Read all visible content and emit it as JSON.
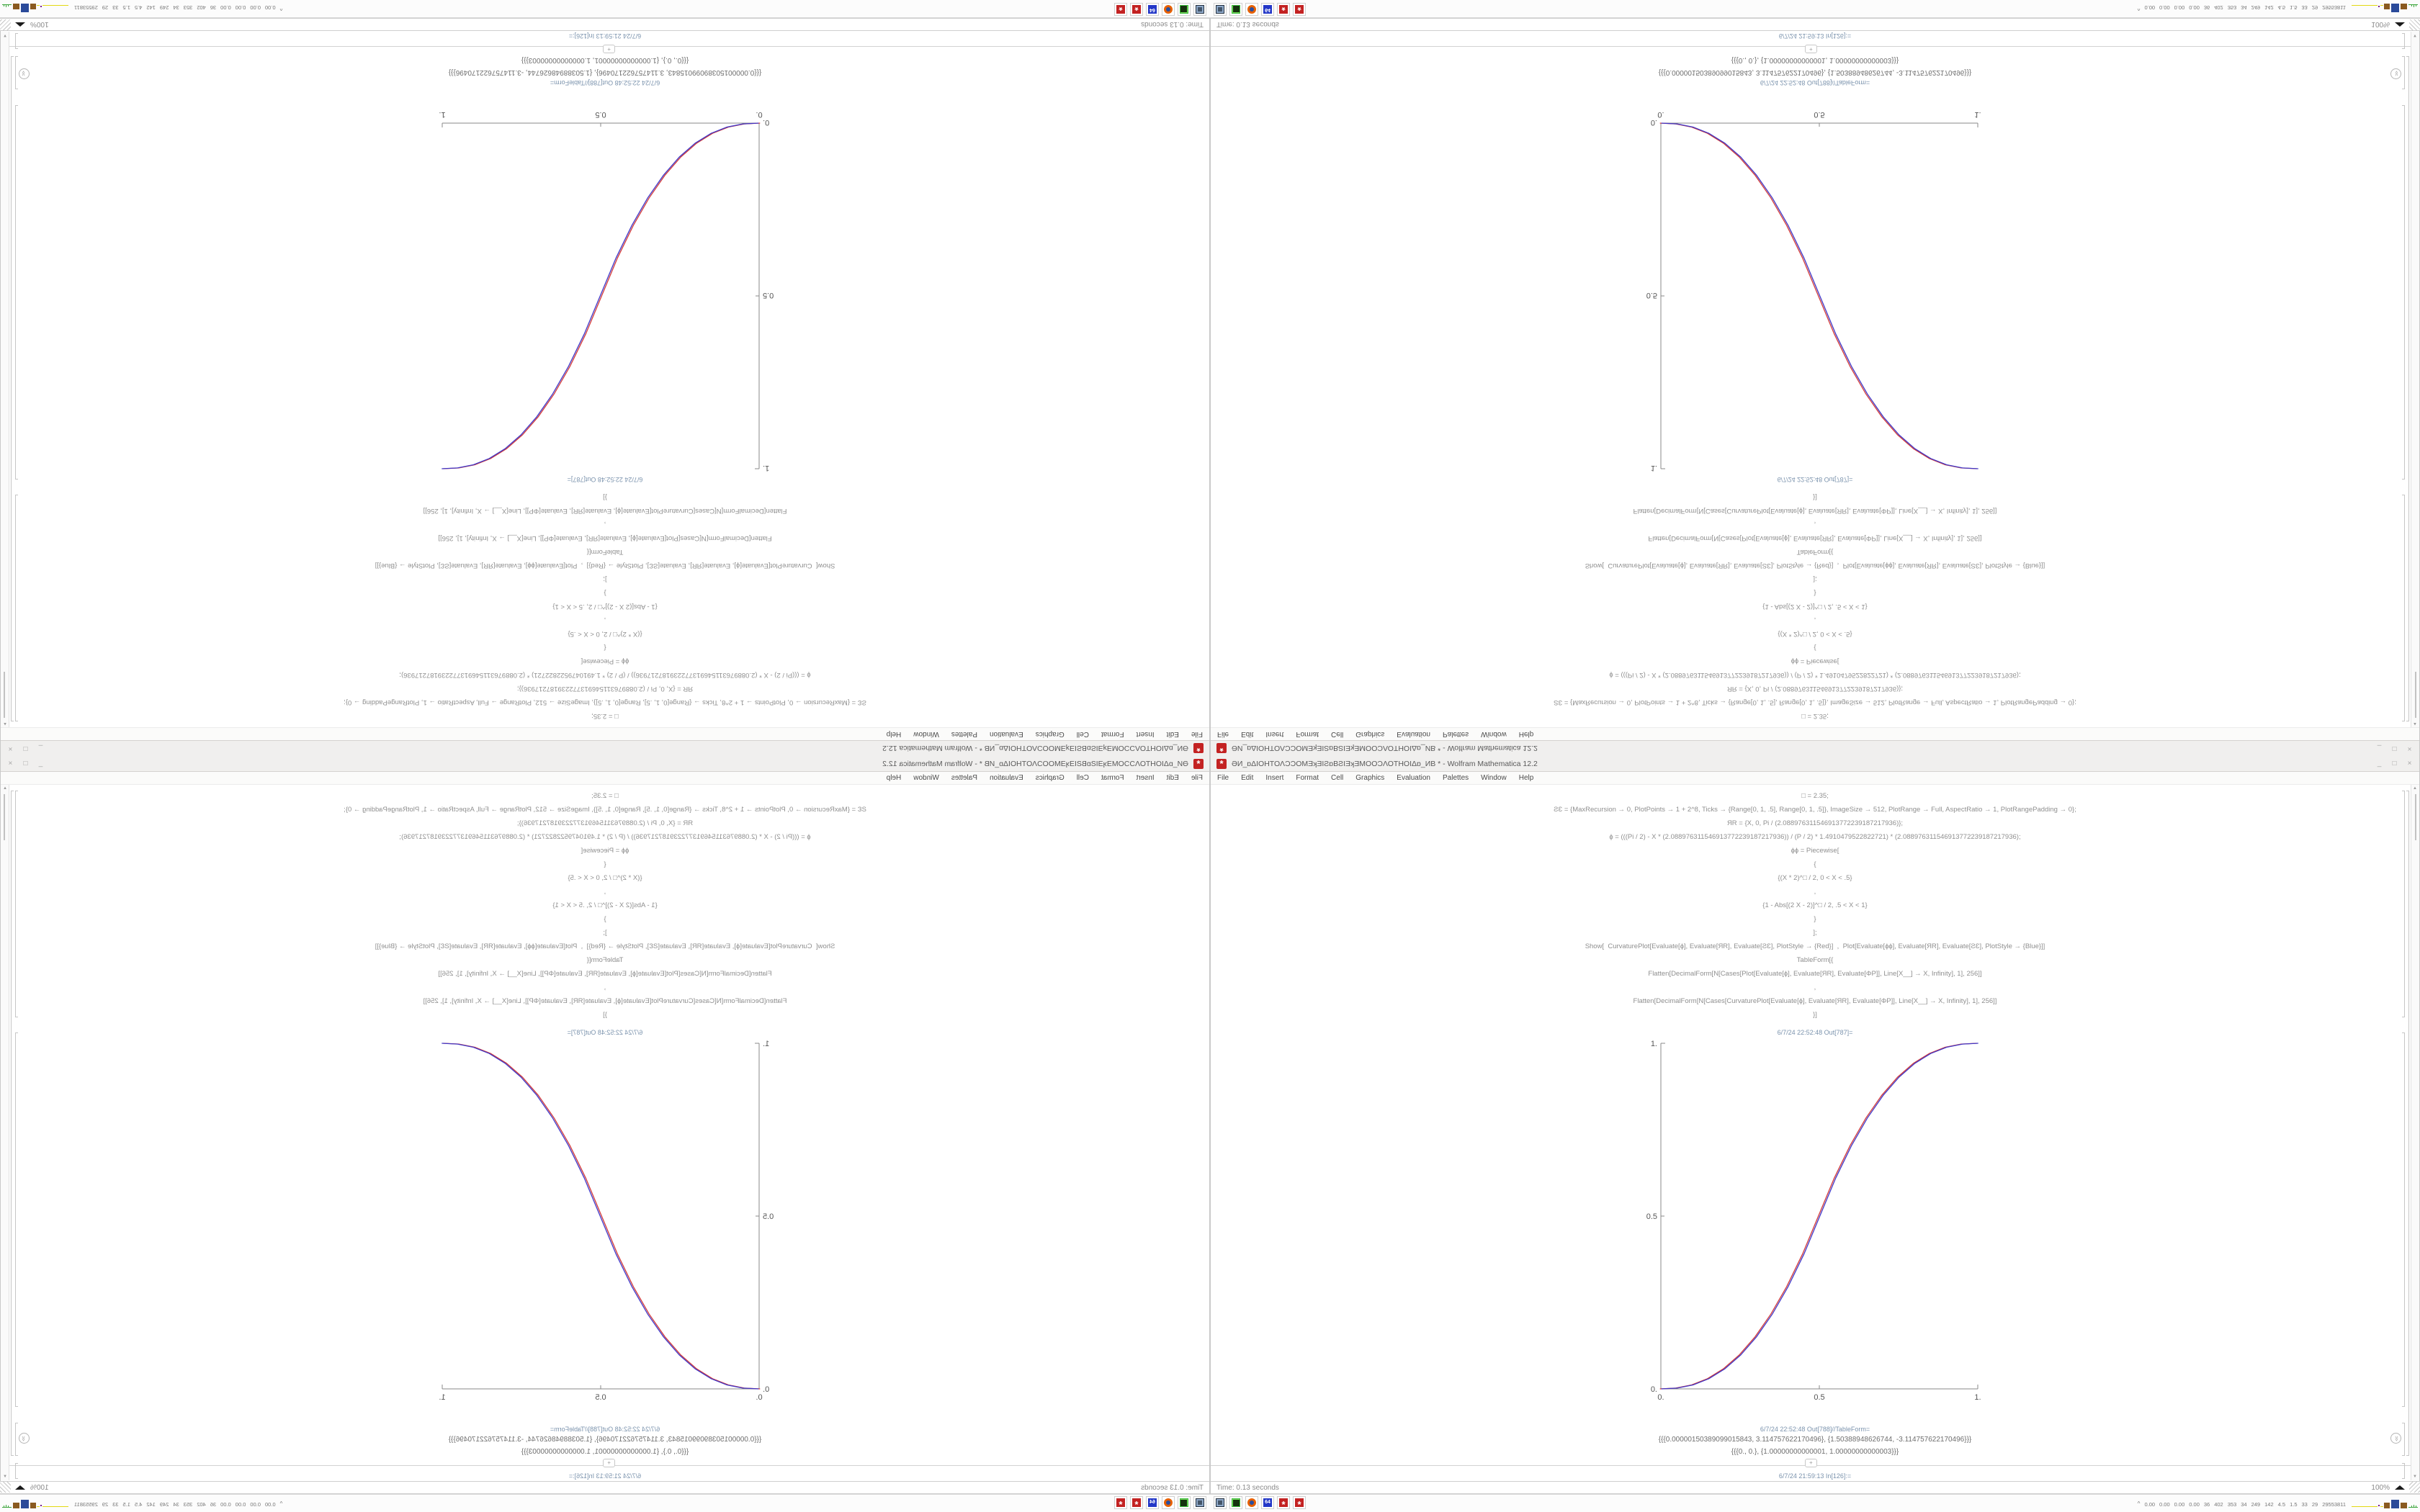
{
  "window": {
    "title": "ƏИ_ɒΔΙΟΗΤΟΛƆƆΟΜƎʞƎΙƧɒΒƧΙƎʞƎΜΟΟƆΛΟΤΗΟΙΔɒ_ИΒ * - Wolfram Mathematica 12.2",
    "app_icon": "mathematica-spikey-icon",
    "controls": {
      "minimize": "_",
      "maximize": "□",
      "close": "×"
    },
    "menu": [
      "File",
      "Edit",
      "Insert",
      "Format",
      "Cell",
      "Graphics",
      "Evaluation",
      "Palettes",
      "Window",
      "Help"
    ],
    "cells": {
      "code_lines": [
        "□ = 2.35;",
        "ƧƐ = {MaxRecursion → 0, PlotPoints → 1 + 2^8, Ticks → {Range[0, 1, .5], Range[0, 1, .5]}, ImageSize → 512, PlotRange → Full, AspectRatio → 1, PlotRangePadding → 0};",
        "ЯR = {X, 0, Pi / (2.088976311546913772239187217936)};",
        "ɸ = (((Pi / 2) - X * (2.088976311546913772239187217936)) / (P / 2) * 1.4910479522822721) * (2.088976311546913772239187217936);",
        "ɸɸ = Piecewise[",
        "{",
        "{(X * 2)^□ / 2, 0 < X < .5}",
        ",",
        "{1 - Abs[(2 X - 2)]^□ / 2, .5 < X < 1}",
        "}",
        "];",
        "Show[  CurvaturePlot[Evaluate[ɸ], Evaluate[ЯR], Evaluate[ƧƐ], PlotStyle → {Red}]  ,  Plot[Evaluate[ɸɸ], Evaluate[ЯR], Evaluate[ƧƐ], PlotStyle → {Blue}]]",
        "TableForm[{",
        "Flatten[DecimalForm[N[Cases[Plot[Evaluate[ɸ], Evaluate[ЯR], Evaluate[ΦΡ]], Line[X__] → X, Infinity], 1], 256]]",
        ",",
        "Flatten[DecimalForm[N[Cases[CurvaturePlot[Evaluate[ɸ], Evaluate[ЯR], Evaluate[ΦΡ]], Line[X__] → X, Infinity], 1], 256]]",
        "}]"
      ],
      "out787_label": "6/7/24 22:52:48 Out[787]=",
      "out788_label": "6/7/24 22:52:48 Out[788]//TableForm=",
      "table_rows": [
        "{{{0.00000150389099015843, 3.114757622170496}, {1.50388948626744, -3.114757622170496}}}",
        "{{{0., 0.}, {1.00000000000001, 1.00000000000003}}}"
      ],
      "insert_plus": "+",
      "in_label": "6/7/24 21:59:13 In[126]:="
    },
    "status": {
      "time": "Time: 0.13 seconds",
      "zoom": "100%"
    }
  },
  "taskbar": {
    "apps": [
      {
        "icon": "display-settings-icon"
      },
      {
        "icon": "package-manager-icon"
      },
      {
        "icon": "firefox-icon"
      },
      {
        "icon": "floppy-disk-icon",
        "label": "64"
      },
      {
        "icon": "mathematica-icon"
      },
      {
        "icon": "mathematica-icon"
      }
    ],
    "sysmon": {
      "caret": "^",
      "values": [
        "0.00",
        "0.00",
        "0.00",
        "0.00",
        "36",
        "402",
        "353",
        "34",
        "249",
        "142",
        "4.5",
        "1.5",
        "33",
        "29",
        "29553811"
      ]
    }
  },
  "colors": {
    "cell_label_blue": "#7b93ad",
    "code_text": "#8f8f8f",
    "curve_red": "#d23a3a",
    "curve_blue": "#4038c8",
    "taskbar_icon_red": "#c32222"
  },
  "chart_data": {
    "type": "line",
    "title": "",
    "xlabel": "",
    "ylabel": "",
    "xlim": [
      0,
      1
    ],
    "ylim": [
      0,
      1
    ],
    "grid": false,
    "legend": "none",
    "xticks": [
      "0.",
      "0.5",
      "1."
    ],
    "yticks": [
      "0.",
      "0.5",
      "1."
    ],
    "x": [
      0,
      0.05,
      0.1,
      0.15,
      0.2,
      0.25,
      0.3,
      0.35,
      0.4,
      0.45,
      0.5,
      0.55,
      0.6,
      0.65,
      0.7,
      0.75,
      0.8,
      0.85,
      0.9,
      0.95,
      1
    ],
    "series": [
      {
        "name": "CurvaturePlot[ɸ] (Red)",
        "color": "#d23a3a",
        "y": [
          0,
          0.0022,
          0.0114,
          0.0295,
          0.058,
          0.098,
          0.1505,
          0.2163,
          0.296,
          0.3903,
          0.5,
          0.6097,
          0.704,
          0.7837,
          0.8495,
          0.902,
          0.942,
          0.9705,
          0.9886,
          0.9978,
          1
        ]
      },
      {
        "name": "Plot[ɸɸ] (Blue)",
        "color": "#4038c8",
        "y": [
          0,
          0.0022,
          0.0114,
          0.0295,
          0.058,
          0.098,
          0.1505,
          0.2163,
          0.296,
          0.3903,
          0.5,
          0.6097,
          0.704,
          0.7837,
          0.8495,
          0.902,
          0.942,
          0.9705,
          0.9886,
          0.9978,
          1
        ]
      }
    ]
  }
}
